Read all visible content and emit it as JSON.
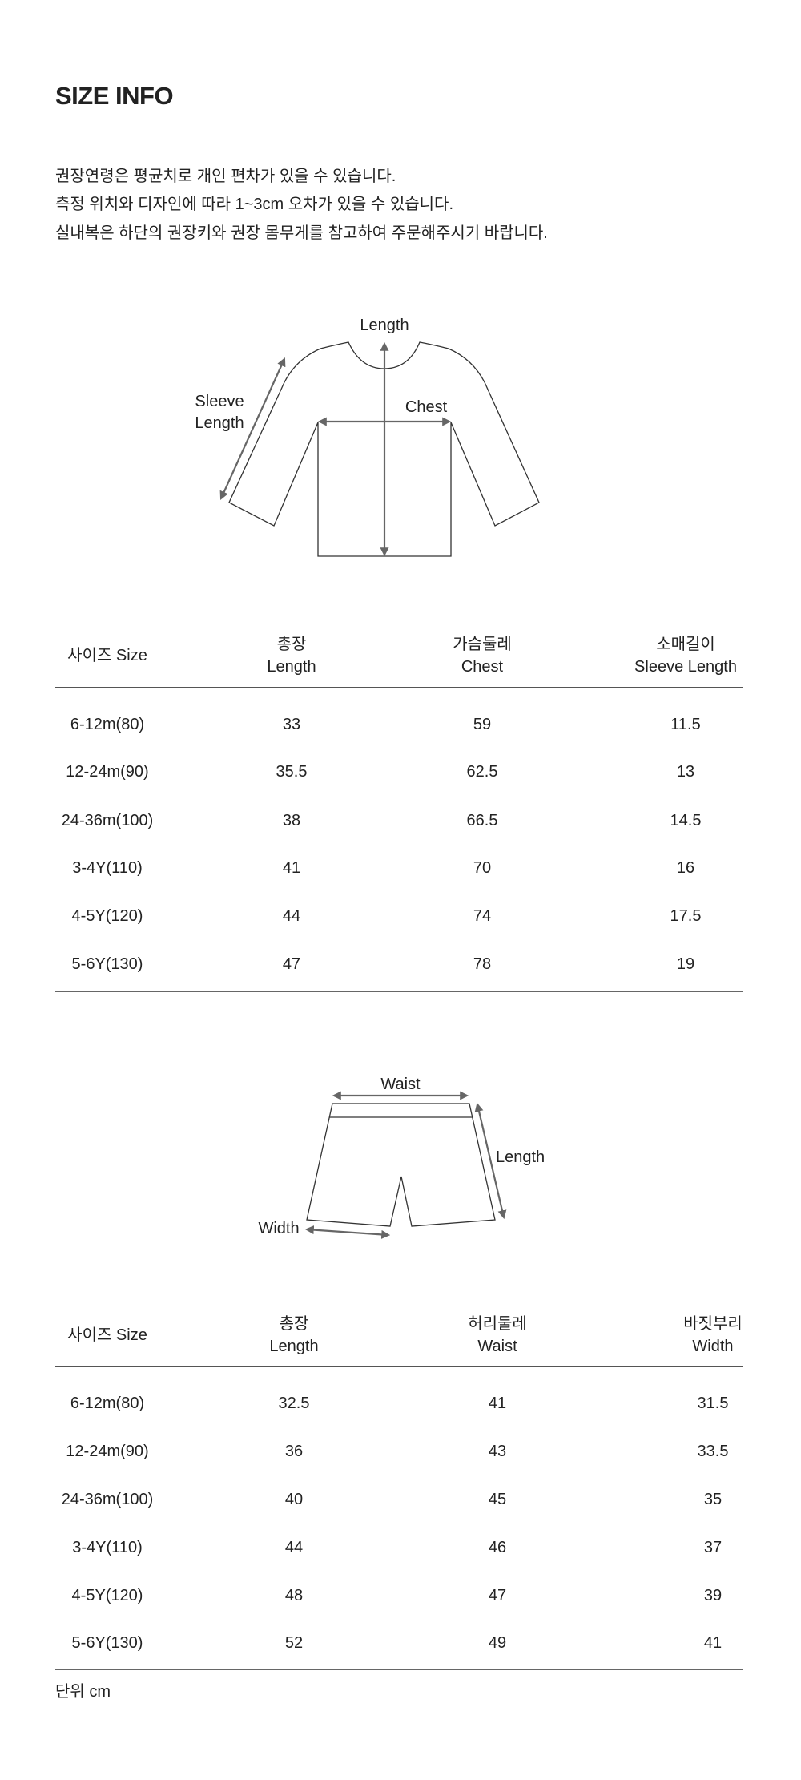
{
  "title": "SIZE INFO",
  "notes": [
    "권장연령은 평균치로 개인 편차가 있을 수 있습니다.",
    "측정 위치와 디자인에 따라 1~3cm 오차가 있을 수 있습니다.",
    "실내복은 하단의 권장키와 권장 몸무게를 참고하여 주문해주시기 바랍니다."
  ],
  "top_diagram": {
    "length": "Length",
    "chest": "Chest",
    "sleeve_1": "Sleeve",
    "sleeve_2": "Length"
  },
  "top_table": {
    "headers": [
      [
        "사이즈 Size"
      ],
      [
        "총장",
        "Length"
      ],
      [
        "가슴둘레",
        "Chest"
      ],
      [
        "소매길이",
        "Sleeve Length"
      ]
    ],
    "rows": [
      [
        "6-12m(80)",
        "33",
        "59",
        "11.5"
      ],
      [
        "12-24m(90)",
        "35.5",
        "62.5",
        "13"
      ],
      [
        "24-36m(100)",
        "38",
        "66.5",
        "14.5"
      ],
      [
        "3-4Y(110)",
        "41",
        "70",
        "16"
      ],
      [
        "4-5Y(120)",
        "44",
        "74",
        "17.5"
      ],
      [
        "5-6Y(130)",
        "47",
        "78",
        "19"
      ]
    ]
  },
  "bottom_diagram": {
    "waist": "Waist",
    "length": "Length",
    "width": "Width"
  },
  "bottom_table": {
    "headers": [
      [
        "사이즈 Size"
      ],
      [
        "총장",
        "Length"
      ],
      [
        "허리둘레",
        "Waist"
      ],
      [
        "바짓부리",
        "Width"
      ]
    ],
    "rows": [
      [
        "6-12m(80)",
        "32.5",
        "41",
        "31.5"
      ],
      [
        "12-24m(90)",
        "36",
        "43",
        "33.5"
      ],
      [
        "24-36m(100)",
        "40",
        "45",
        "35"
      ],
      [
        "3-4Y(110)",
        "44",
        "46",
        "37"
      ],
      [
        "4-5Y(120)",
        "48",
        "47",
        "39"
      ],
      [
        "5-6Y(130)",
        "52",
        "49",
        "41"
      ]
    ]
  },
  "unit": "단위 cm"
}
